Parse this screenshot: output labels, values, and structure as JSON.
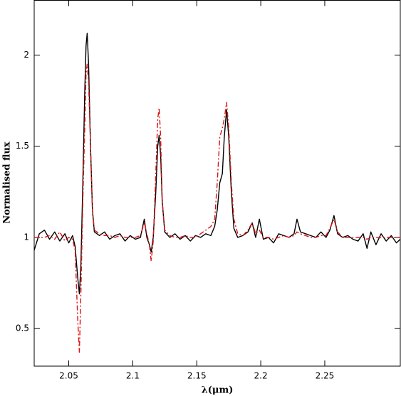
{
  "chart_data": {
    "type": "line",
    "xlabel": "λ(μm)",
    "ylabel": "Normalised flux",
    "xlim": [
      2.023,
      2.309
    ],
    "ylim": [
      0.294,
      2.3
    ],
    "xticks": [
      2.05,
      2.1,
      2.15,
      2.2,
      2.25
    ],
    "yticks": [
      0.5,
      1,
      1.5,
      2
    ],
    "x": [
      2.023,
      2.027,
      2.031,
      2.035,
      2.039,
      2.043,
      2.047,
      2.05,
      2.053,
      2.055,
      2.057,
      2.0583,
      2.0595,
      2.061,
      2.0625,
      2.0635,
      2.0644,
      2.0655,
      2.067,
      2.0685,
      2.07,
      2.074,
      2.078,
      2.082,
      2.086,
      2.09,
      2.094,
      2.098,
      2.102,
      2.106,
      2.109,
      2.111,
      2.113,
      2.1144,
      2.116,
      2.118,
      2.1195,
      2.1206,
      2.1218,
      2.123,
      2.125,
      2.129,
      2.133,
      2.137,
      2.141,
      2.145,
      2.149,
      2.153,
      2.157,
      2.161,
      2.164,
      2.166,
      2.168,
      2.17,
      2.1715,
      2.1733,
      2.175,
      2.177,
      2.179,
      2.182,
      2.186,
      2.19,
      2.1933,
      2.196,
      2.1989,
      2.202,
      2.206,
      2.21,
      2.214,
      2.218,
      2.222,
      2.226,
      2.2283,
      2.231,
      2.235,
      2.239,
      2.243,
      2.247,
      2.251,
      2.254,
      2.2572,
      2.26,
      2.264,
      2.268,
      2.272,
      2.276,
      2.28,
      2.283,
      2.286,
      2.29,
      2.294,
      2.298,
      2.302,
      2.306,
      2.309
    ],
    "series": [
      {
        "color": "#000000",
        "dash": "solid",
        "values": [
          0.93,
          1.02,
          1.04,
          0.99,
          1.03,
          0.98,
          1.02,
          0.97,
          1.01,
          0.95,
          0.78,
          0.69,
          0.85,
          1.3,
          1.8,
          2.05,
          2.12,
          1.95,
          1.5,
          1.15,
          1.03,
          1.01,
          1.03,
          0.99,
          1.01,
          1.02,
          0.98,
          1.01,
          0.99,
          1.0,
          1.1,
          1.0,
          0.96,
          0.92,
          1.0,
          1.25,
          1.5,
          1.56,
          1.45,
          1.2,
          1.03,
          1.0,
          1.02,
          0.99,
          1.01,
          0.98,
          1.01,
          1.0,
          1.02,
          1.01,
          1.06,
          1.15,
          1.3,
          1.35,
          1.55,
          1.7,
          1.55,
          1.25,
          1.05,
          1.0,
          1.01,
          1.03,
          1.08,
          1.0,
          1.1,
          0.99,
          1.0,
          0.97,
          1.02,
          1.01,
          1.0,
          1.02,
          1.1,
          1.03,
          1.02,
          1.01,
          1.0,
          1.03,
          1.0,
          1.04,
          1.12,
          1.02,
          1.0,
          1.01,
          0.99,
          0.98,
          1.02,
          0.94,
          1.03,
          0.96,
          1.02,
          0.98,
          1.01,
          0.97,
          0.99
        ]
      },
      {
        "color": "#dd1111",
        "dash": "dash-dot",
        "values": [
          1.0,
          1.0,
          1.0,
          1.01,
          0.99,
          1.03,
          0.98,
          1.0,
          0.99,
          0.93,
          0.55,
          0.37,
          0.7,
          1.2,
          1.6,
          1.9,
          1.95,
          1.85,
          1.5,
          1.15,
          1.04,
          1.02,
          1.01,
          1.01,
          1.0,
          1.01,
          1.0,
          1.0,
          1.0,
          1.01,
          1.08,
          1.02,
          0.96,
          0.87,
          0.98,
          1.35,
          1.65,
          1.71,
          1.55,
          1.2,
          1.04,
          1.01,
          1.0,
          1.0,
          1.01,
          1.0,
          1.0,
          1.02,
          1.04,
          1.06,
          1.1,
          1.3,
          1.55,
          1.6,
          1.65,
          1.74,
          1.6,
          1.3,
          1.1,
          1.02,
          1.01,
          1.04,
          1.08,
          1.02,
          1.04,
          1.0,
          1.0,
          0.99,
          1.0,
          1.01,
          1.0,
          1.01,
          1.03,
          1.02,
          1.01,
          1.0,
          1.0,
          1.01,
          1.01,
          1.05,
          1.1,
          1.03,
          1.0,
          1.0,
          1.0,
          1.0,
          1.0,
          0.99,
          1.0,
          1.0,
          1.0,
          1.0,
          1.0,
          1.0,
          1.0
        ]
      }
    ]
  }
}
